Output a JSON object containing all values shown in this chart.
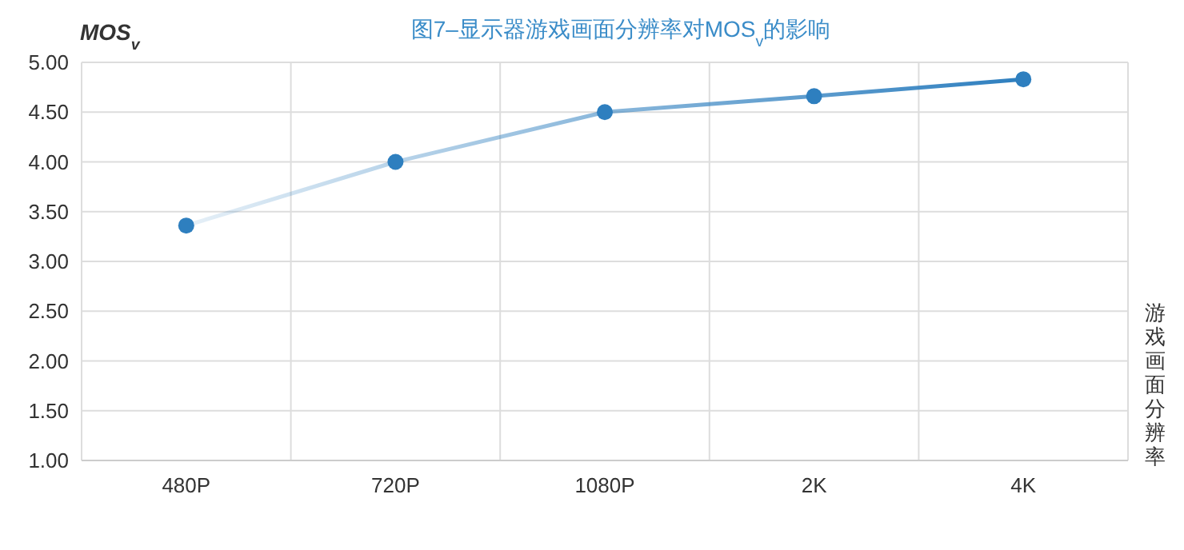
{
  "chart_data": {
    "type": "line",
    "title": "图7–显示器游戏画面分辨率对MOS$_{v}$的影响",
    "ylabel": "MOS$_{v}$",
    "xlabel": "游戏画面分辨率",
    "categories": [
      "480P",
      "720P",
      "1080P",
      "2K",
      "4K"
    ],
    "series": [
      {
        "color": "#2e7fbf",
        "values": [
          3.36,
          4.0,
          4.5,
          4.66,
          4.83
        ]
      }
    ],
    "ylim": [
      1,
      5
    ],
    "yticks": [
      {
        "value": 1,
        "label": "1.00"
      },
      {
        "value": 1.5,
        "label": "1.50"
      },
      {
        "value": 2,
        "label": "2.00"
      },
      {
        "value": 2.5,
        "label": "2.50"
      },
      {
        "value": 3,
        "label": "3.00"
      },
      {
        "value": 3.5,
        "label": "3.50"
      },
      {
        "value": 4,
        "label": "4.00"
      },
      {
        "value": 4.5,
        "label": "4.50"
      },
      {
        "value": 5,
        "label": "5.00"
      }
    ],
    "grid": true,
    "marker": "circle",
    "line_style": "solid"
  }
}
